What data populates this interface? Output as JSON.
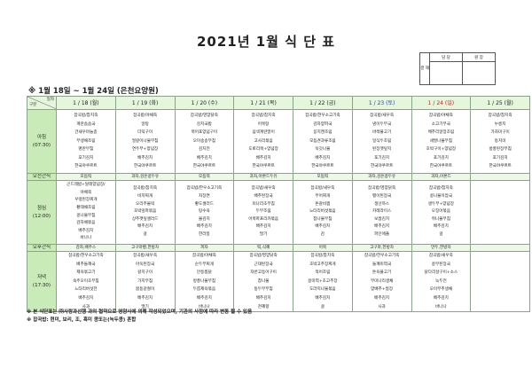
{
  "title": "2021년 1월 식 단 표",
  "approval": {
    "side_label": "결 재",
    "col1": "담 당",
    "col2": "원 장"
  },
  "subtitle": "※ 1월 18일 ~ 1월 24일 (은천요양원)",
  "corner": {
    "top": "일자",
    "bottom": "구분"
  },
  "colors": {
    "header_bg": "#e6f6dc",
    "label_bg": "#c9ebb7",
    "saturday": "#1a3fb0",
    "sunday": "#d11a1a"
  },
  "days": [
    {
      "date": "1 / 18 (월)",
      "color": "normal"
    },
    {
      "date": "1 / 19 (화)",
      "color": "normal"
    },
    {
      "date": "1 / 20 (수)",
      "color": "normal"
    },
    {
      "date": "1 / 21 (목)",
      "color": "normal"
    },
    {
      "date": "1 / 22 (금)",
      "color": "normal"
    },
    {
      "date": "1 / 23 (토)",
      "color": "blue"
    },
    {
      "date": "1 / 24 (일)",
      "color": "red"
    },
    {
      "date": "1 / 25 (월)",
      "color": "normal"
    }
  ],
  "meals": [
    {
      "label": "아침",
      "time": "(07:30)",
      "type": "meal",
      "menus": [
        [
          "잡곡밥/참치죽",
          "계란솜솜국",
          "건새우마늘종",
          "무생채조림",
          "명란무침",
          "포기김치",
          "한국야쿠르트"
        ],
        [
          "잡곡밥/야채죽",
          "알탕",
          "더덕구이",
          "얼갈이나물무침",
          "연두부+양념장",
          "배추김치",
          "한국야쿠르트"
        ],
        [
          "잡곡밥/영양닭죽",
          "김치국밥",
          "북어포양념구이",
          "오이송송무침",
          "김치전",
          "배추김치",
          "한국야쿠르트"
        ],
        [
          "잡곡밥/참치죽",
          "어묵탕",
          "삼색계란말이",
          "고사리볶음",
          "도토리묵+양념장",
          "배추김치",
          "한국야쿠르트"
        ],
        [
          "잡곡밥/한우소고기죽",
          "감자양파국",
          "꽁치캔조림",
          "모듬견과류조림",
          "쑥갓나물",
          "배추김치",
          "한국야쿠르트"
        ],
        [
          "잡곡밥/새우죽",
          "냉이두부국",
          "바싹불고기",
          "일식두조림",
          "된장깻잎지",
          "포기김치",
          "한국야쿠르트"
        ],
        [
          "잡곡밥/야채죽",
          "소고기무국",
          "메추리알장조림",
          "세발나물무침",
          "호박구이+양념장",
          "포기김치",
          "한국야쿠르트"
        ],
        [
          "잡곡밥/참치죽",
          "누룽지",
          "가자미구이",
          "동치미",
          "방풍된장무침",
          "포기김치",
          "한국야쿠르트"
        ]
      ]
    },
    {
      "label": "오전간식",
      "type": "snack",
      "menus": [
        [
          "모듬떡"
        ],
        [
          "과자,검은콩두유"
        ],
        [
          "모듬떡"
        ],
        [
          "과자,아몬드두유"
        ],
        [
          "모듬떡"
        ],
        [
          "과자,검은콩두유"
        ],
        [
          "과자,아몬드"
        ],
        [
          ""
        ]
      ]
    },
    {
      "label": "점심",
      "time": "(12:00)",
      "type": "meal",
      "menus": [
        [
          "곤드레밥+달래양념장/",
          "야채죽",
          "우렁된장찌개",
          "황태채조림",
          "콩나물무침",
          "감자채볶음",
          "배추김치",
          "바나나"
        ],
        [
          "잡곡밥/참치죽",
          "비지찌개",
          "오리주물럭",
          "호박잎파볶음",
          "상추깻잎샐러드",
          "배추김치",
          "귤"
        ],
        [
          "잡곡밥/한우소고기죽",
          "자장면",
          "황도샐러드",
          "탕수육",
          "물김치",
          "배추김치",
          "한라봉"
        ],
        [
          "잡곡밥/새우죽",
          "배추된장국",
          "미나리초무침",
          "두부조림",
          "어묵파프리카볶음",
          "배추김치",
          "딸기"
        ],
        [
          "잡곡밥/새우죽",
          "무어찌개",
          "돈갈비찜",
          "느타리버섯볶음",
          "참나물무침",
          "배추김치",
          "감"
        ],
        [
          "잡곡밥/영양닭죽",
          "팽이된장국",
          "생선까스",
          "카레라이스",
          "보쌈김치",
          "배추김치",
          "파인애플"
        ],
        [
          "잡곡밥/참치죽",
          "콩나물이잡국",
          "생두부+양념장",
          "오징어볶음",
          "취나물무침",
          "배추김치",
          "귤"
        ],
        [
          ""
        ]
      ]
    },
    {
      "label": "오후간식",
      "type": "snack",
      "menus": [
        [
          "감자,배주스"
        ],
        [
          "고구마빵,한방차"
        ],
        [
          "피자"
        ],
        [
          "떡,식혜"
        ],
        [
          "어묵"
        ],
        [
          "고구마,한방차"
        ],
        [
          "만두,한방차"
        ],
        [
          ""
        ]
      ]
    },
    {
      "label": "저녁",
      "time": "(17:30)",
      "type": "meal",
      "menus": [
        [
          "잡곡밥/한우소고기죽",
          "배추들깨국",
          "제육볶고기",
          "숙주오이초무침",
          "느타리버섯전",
          "배추김치",
          "사과"
        ],
        [
          "잡곡밥/새우죽",
          "아욱된장국",
          "갈치구이",
          "가지무침",
          "봄동겉절이",
          "배추김치",
          "딸기"
        ],
        [
          "잡곡밥/야채죽",
          "순두부찌개",
          "안동찜닭",
          "방풍나물무침",
          "두릅제육볶음",
          "배추김치",
          "바나나"
        ],
        [
          "잡곡밥/영양닭죽",
          "근대된장국",
          "자반고등어구이",
          "참나물",
          "동두부무침",
          "배추김치",
          "천혜향"
        ],
        [
          "잡곡밥/참치죽",
          "호박고추장찌개",
          "적어조림",
          "콩미역+초고추장",
          "도라지나물볶음",
          "배추김치",
          "귤"
        ],
        [
          "잡곡밥/한우소고기죽",
          "들깨미역국",
          "돈육불고기",
          "무미나리생채",
          "양배추+쌈장",
          "배추김치",
          "사과"
        ],
        [
          "잡곡밥/새우죽",
          "콩무된장국",
          "닭다리살구이+소스",
          "녹두전",
          "오이부추생채",
          "배추김치",
          "바나나"
        ],
        [
          ""
        ]
      ]
    }
  ],
  "notes": [
    "※ 본 식단표는 ㈜사랑과선행 과의 협약으로 영양사에 의해 작성되었으며, 기관의 사정에 따라 변동 될 수 있음",
    "※ 잡곡밥: 현미, 보리, 조, 흑미 콩또는(녹두콩) 혼합"
  ]
}
